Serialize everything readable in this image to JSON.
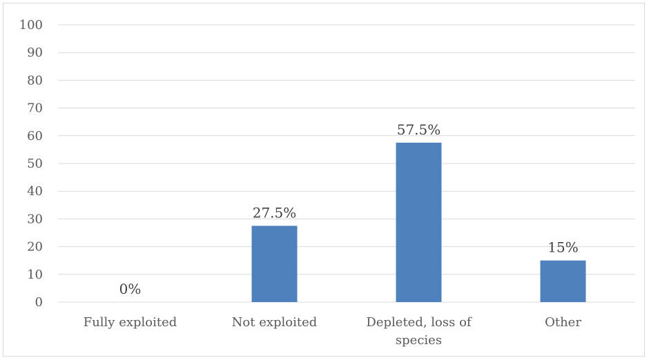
{
  "chart_data": {
    "type": "bar",
    "categories": [
      "Fully exploited",
      "Not exploited",
      "Depleted, loss of species",
      "Other"
    ],
    "category_lines": [
      [
        "Fully exploited"
      ],
      [
        "Not exploited"
      ],
      [
        "Depleted, loss of",
        "species"
      ],
      [
        "Other"
      ]
    ],
    "values": [
      0,
      27.5,
      57.5,
      15
    ],
    "data_labels": [
      "0%",
      "27.5%",
      "57.5%",
      "15%"
    ],
    "yticks": [
      0,
      10,
      20,
      30,
      40,
      50,
      60,
      70,
      80,
      90,
      100
    ],
    "ylim": [
      0,
      100
    ],
    "grid": true,
    "bar_color": "#4f81bd",
    "grid_color": "#d9d9d9"
  }
}
